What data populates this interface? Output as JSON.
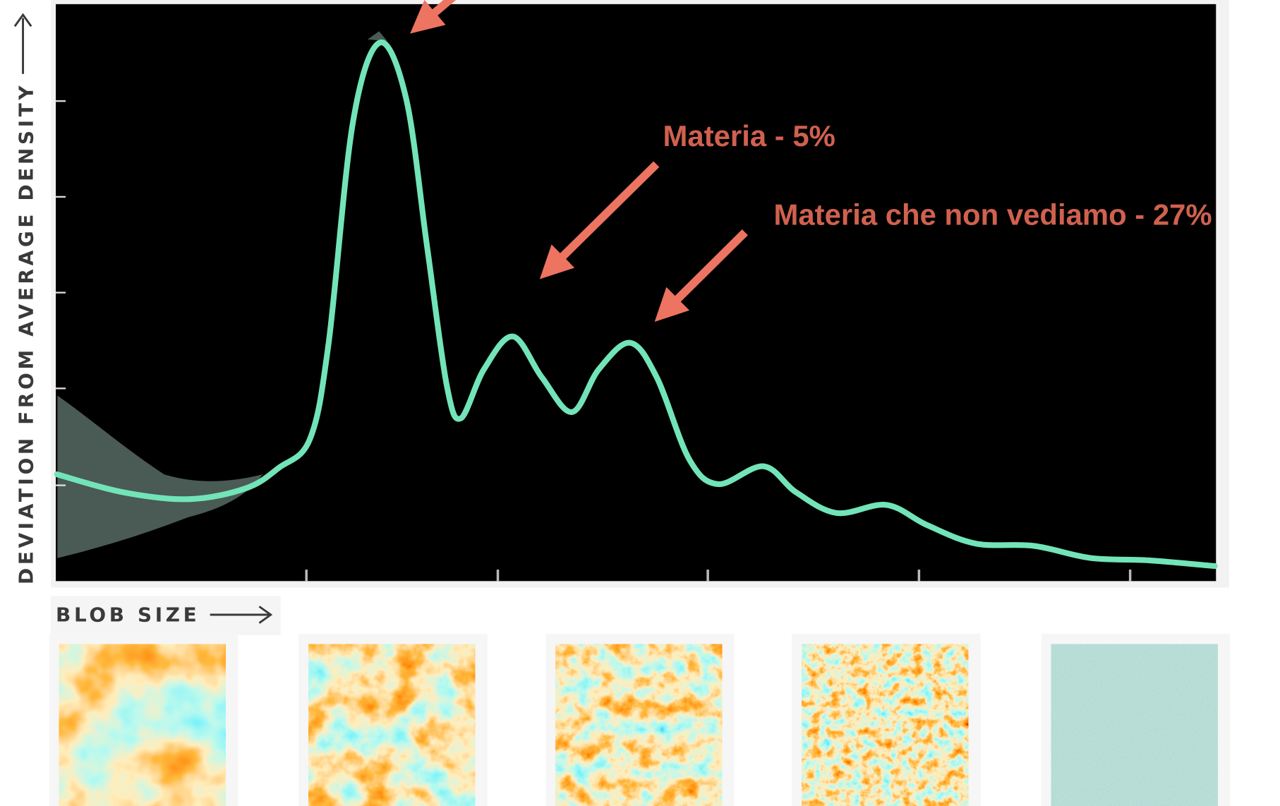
{
  "chart_data": {
    "type": "line",
    "y_label": "DEVIATION FROM AVERAGE DENSITY",
    "x_label": "BLOB SIZE",
    "annotations": [
      "Materia - 5%",
      "Materia che non vediamo - 27%"
    ],
    "x": [
      0.1,
      5.8,
      11.5,
      16.4,
      19.2,
      21.9,
      23.5,
      25.6,
      27.9,
      30.2,
      32.0,
      33.7,
      34.9,
      36.9,
      39.4,
      41.9,
      44.5,
      46.8,
      49.5,
      51.8,
      54.6,
      57.1,
      61.0,
      63.8,
      67.3,
      71.6,
      75.1,
      79.3,
      84.3,
      89.2,
      94.2,
      99.9
    ],
    "series": [
      {
        "color": "#72e4b8",
        "values": [
          18.5,
          15.4,
          14.2,
          16.1,
          19.6,
          24.6,
          41.0,
          79.4,
          93.3,
          83.6,
          58.0,
          33.9,
          28.2,
          36.7,
          42.4,
          35.3,
          29.3,
          36.7,
          41.3,
          35.3,
          21.1,
          16.8,
          19.9,
          15.4,
          11.8,
          13.2,
          9.7,
          6.5,
          6.1,
          4.0,
          3.6,
          2.6
        ]
      }
    ],
    "xlim": [
      0,
      100
    ],
    "ylim": [
      0,
      100
    ],
    "xticks": [
      21.6,
      38.1,
      56.2,
      74.4,
      92.6
    ],
    "yticks": [
      16.6,
      33.4,
      50,
      66.6,
      83.2
    ]
  }
}
